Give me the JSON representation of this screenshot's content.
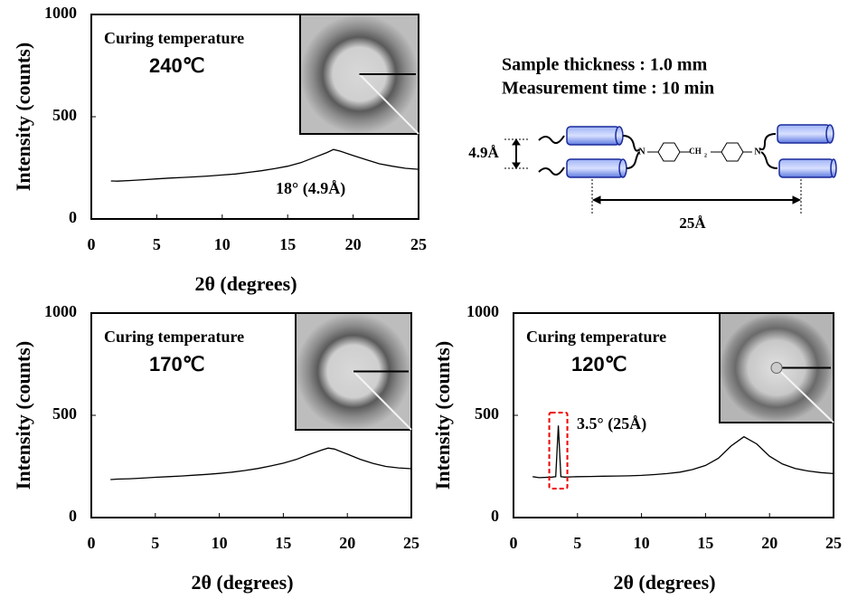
{
  "chart_data": [
    {
      "type": "line",
      "title": "Curing temperature",
      "subtitle": "240℃",
      "xlabel": "2θ   (degrees)",
      "ylabel": "Intensity (counts)",
      "annotation": "18°  (4.9Å)",
      "x": [
        1.5,
        2,
        3,
        4,
        5,
        6,
        7,
        8,
        9,
        10,
        11,
        12,
        13,
        14,
        15,
        16,
        17,
        18,
        18.5,
        19,
        20,
        21,
        22,
        23,
        24,
        25
      ],
      "series": [
        {
          "name": "240℃",
          "color": "#000000",
          "values": [
            186,
            185,
            188,
            192,
            196,
            200,
            203,
            206,
            210,
            215,
            220,
            228,
            236,
            246,
            258,
            275,
            300,
            325,
            340,
            332,
            310,
            290,
            270,
            258,
            248,
            243
          ]
        }
      ],
      "xlim": [
        0,
        25
      ],
      "xticks": [
        0,
        5,
        10,
        15,
        20,
        25
      ],
      "ylim": [
        0,
        1000
      ],
      "yticks": [
        0,
        500,
        1000
      ]
    },
    {
      "type": "line",
      "title": "Curing temperature",
      "subtitle": "170℃",
      "xlabel": "2θ   (degrees)",
      "ylabel": "Intensity (counts)",
      "x": [
        1.5,
        2,
        3,
        4,
        5,
        6,
        7,
        8,
        9,
        10,
        11,
        12,
        13,
        14,
        15,
        16,
        17,
        18,
        18.5,
        19,
        20,
        21,
        22,
        23,
        24,
        25
      ],
      "series": [
        {
          "name": "170℃",
          "color": "#000000",
          "values": [
            186,
            188,
            190,
            193,
            197,
            200,
            203,
            207,
            211,
            216,
            222,
            230,
            240,
            252,
            266,
            284,
            308,
            330,
            340,
            335,
            310,
            285,
            265,
            250,
            243,
            239
          ]
        }
      ],
      "xlim": [
        0,
        25
      ],
      "xticks": [
        0,
        5,
        10,
        15,
        20,
        25
      ],
      "ylim": [
        0,
        1000
      ],
      "yticks": [
        0,
        500,
        1000
      ]
    },
    {
      "type": "line",
      "title": "Curing temperature",
      "subtitle": "120℃",
      "xlabel": "2θ   (degrees)",
      "ylabel": "Intensity (counts)",
      "annotation": "3.5°  (25Å)",
      "x": [
        1.5,
        2,
        3,
        3.3,
        3.5,
        3.7,
        4,
        5,
        6,
        7,
        8,
        9,
        10,
        11,
        12,
        13,
        14,
        15,
        16,
        17,
        18,
        19,
        20,
        21,
        22,
        23,
        24,
        25
      ],
      "series": [
        {
          "name": "120℃",
          "color": "#000000",
          "values": [
            200,
            195,
            198,
            200,
            450,
            200,
            198,
            200,
            201,
            202,
            203,
            204,
            206,
            210,
            215,
            222,
            235,
            255,
            290,
            350,
            395,
            360,
            300,
            262,
            240,
            228,
            220,
            215
          ]
        }
      ],
      "xlim": [
        0,
        25
      ],
      "xticks": [
        0,
        5,
        10,
        15,
        20,
        25
      ],
      "ylim": [
        0,
        1000
      ],
      "yticks": [
        0,
        500,
        1000
      ]
    }
  ],
  "diagram": {
    "lines": [
      "Sample thickness : 1.0 mm",
      "Measurement time : 10 min"
    ],
    "spacing": "4.9Å",
    "length": "25Å",
    "atoms": [
      "N",
      "CH",
      "2",
      "N"
    ]
  }
}
